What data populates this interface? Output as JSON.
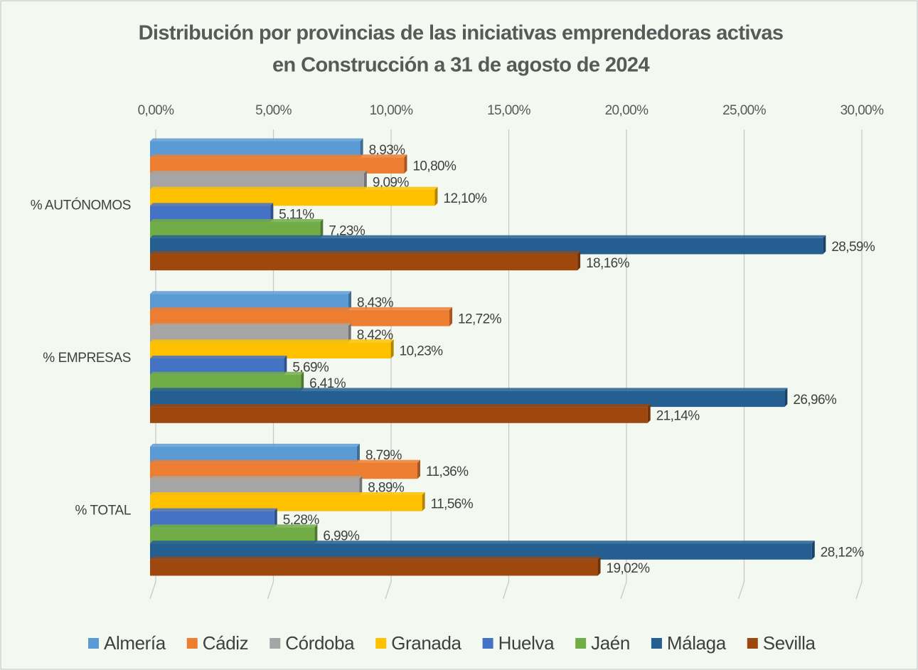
{
  "chart_data": {
    "type": "bar",
    "orientation": "horizontal",
    "title": [
      "Distribución por provincias de las iniciativas emprendedoras activas",
      "en Construcción a 31 de agosto de 2024"
    ],
    "categories": [
      "% AUTÓNOMOS",
      "% EMPRESAS",
      "% TOTAL"
    ],
    "series": [
      {
        "name": "Almería",
        "color": "#5b9bd5",
        "values": [
          8.93,
          8.43,
          8.79
        ],
        "value_labels": [
          "8,93%",
          "8,43%",
          "8,79%"
        ]
      },
      {
        "name": "Cádiz",
        "color": "#ed7d31",
        "values": [
          10.8,
          12.72,
          11.36
        ],
        "value_labels": [
          "10,80%",
          "12,72%",
          "11,36%"
        ]
      },
      {
        "name": "Córdoba",
        "color": "#a5a5a5",
        "values": [
          9.09,
          8.42,
          8.89
        ],
        "value_labels": [
          "9,09%",
          "8,42%",
          "8,89%"
        ]
      },
      {
        "name": "Granada",
        "color": "#ffc000",
        "values": [
          12.1,
          10.23,
          11.56
        ],
        "value_labels": [
          "12,10%",
          "10,23%",
          "11,56%"
        ]
      },
      {
        "name": "Huelva",
        "color": "#4472c4",
        "values": [
          5.11,
          5.69,
          5.28
        ],
        "value_labels": [
          "5,11%",
          "5,69%",
          "5,28%"
        ]
      },
      {
        "name": "Jaén",
        "color": "#70ad47",
        "values": [
          7.23,
          6.41,
          6.99
        ],
        "value_labels": [
          "7,23%",
          "6,41%",
          "6,99%"
        ]
      },
      {
        "name": "Málaga",
        "color": "#255e91",
        "values": [
          28.59,
          26.96,
          28.12
        ],
        "value_labels": [
          "28,59%",
          "26,96%",
          "28,12%"
        ]
      },
      {
        "name": "Sevilla",
        "color": "#9e480e",
        "values": [
          18.16,
          21.14,
          19.02
        ],
        "value_labels": [
          "18,16%",
          "21,14%",
          "19,02%"
        ]
      }
    ],
    "xlim": [
      0,
      30
    ],
    "xticks": [
      {
        "value": 0,
        "label": "0,00%"
      },
      {
        "value": 5,
        "label": "5,00%"
      },
      {
        "value": 10,
        "label": "10,00%"
      },
      {
        "value": 15,
        "label": "15,00%"
      },
      {
        "value": 20,
        "label": "20,00%"
      },
      {
        "value": 25,
        "label": "25,00%"
      },
      {
        "value": 30,
        "label": "30,00%"
      }
    ],
    "grid": true,
    "legend": "bottom"
  }
}
